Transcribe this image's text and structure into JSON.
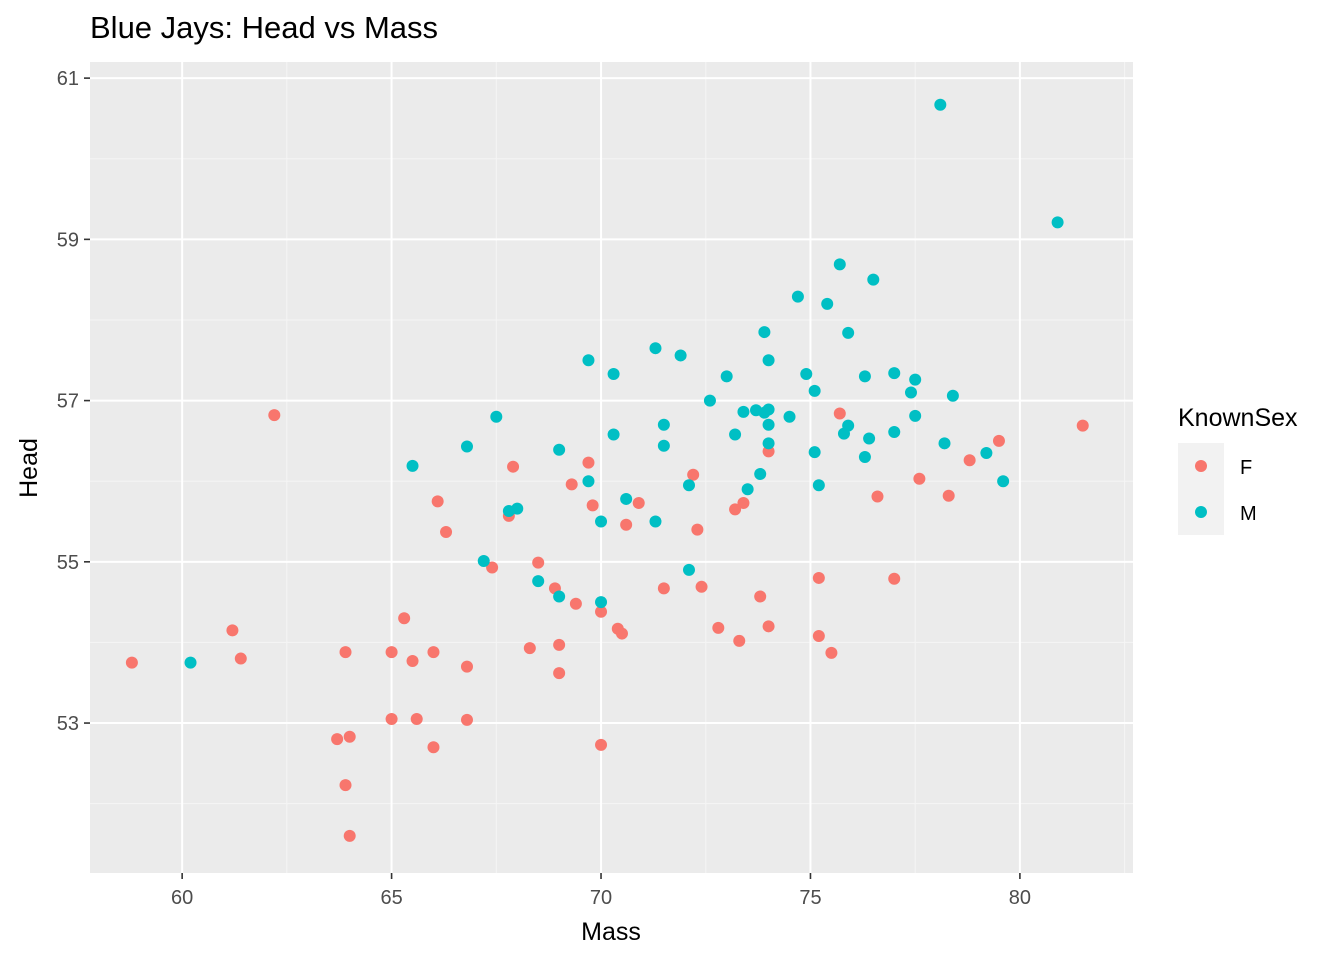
{
  "chart_data": {
    "type": "scatter",
    "title": "Blue Jays: Head vs Mass",
    "xlabel": "Mass",
    "ylabel": "Head",
    "xlim": [
      57.8,
      82.7
    ],
    "ylim": [
      51.14,
      61.2
    ],
    "xticks": [
      60,
      65,
      70,
      75,
      80
    ],
    "yticks": [
      53,
      55,
      57,
      59,
      61
    ],
    "grid": true,
    "legend": {
      "title": "KnownSex",
      "placement": "right"
    },
    "series": [
      {
        "name": "F",
        "color": "#F8766D",
        "points": [
          [
            58.8,
            53.75
          ],
          [
            61.2,
            54.15
          ],
          [
            61.4,
            53.8
          ],
          [
            62.2,
            56.82
          ],
          [
            63.7,
            52.8
          ],
          [
            63.9,
            53.88
          ],
          [
            63.9,
            52.23
          ],
          [
            64.0,
            52.83
          ],
          [
            64.0,
            51.6
          ],
          [
            65.0,
            53.88
          ],
          [
            65.0,
            53.05
          ],
          [
            65.3,
            54.3
          ],
          [
            65.5,
            53.77
          ],
          [
            65.6,
            53.05
          ],
          [
            66.0,
            53.88
          ],
          [
            66.0,
            52.7
          ],
          [
            66.1,
            55.75
          ],
          [
            66.3,
            55.37
          ],
          [
            66.8,
            53.7
          ],
          [
            66.8,
            53.04
          ],
          [
            67.4,
            54.93
          ],
          [
            67.8,
            55.57
          ],
          [
            67.9,
            56.18
          ],
          [
            68.3,
            53.93
          ],
          [
            68.5,
            54.99
          ],
          [
            68.9,
            54.67
          ],
          [
            69.0,
            53.97
          ],
          [
            69.0,
            53.62
          ],
          [
            69.3,
            55.96
          ],
          [
            69.4,
            54.48
          ],
          [
            69.7,
            56.23
          ],
          [
            69.8,
            55.7
          ],
          [
            70.0,
            54.38
          ],
          [
            70.0,
            52.73
          ],
          [
            70.4,
            54.17
          ],
          [
            70.5,
            54.11
          ],
          [
            70.6,
            55.46
          ],
          [
            70.9,
            55.73
          ],
          [
            71.5,
            54.67
          ],
          [
            72.2,
            56.08
          ],
          [
            72.3,
            55.4
          ],
          [
            72.4,
            54.69
          ],
          [
            72.8,
            54.18
          ],
          [
            73.2,
            55.65
          ],
          [
            73.3,
            54.02
          ],
          [
            73.4,
            55.73
          ],
          [
            73.8,
            54.57
          ],
          [
            74.0,
            56.37
          ],
          [
            74.0,
            54.2
          ],
          [
            75.2,
            54.8
          ],
          [
            75.2,
            54.08
          ],
          [
            75.5,
            53.87
          ],
          [
            75.7,
            56.84
          ],
          [
            76.6,
            55.81
          ],
          [
            77.0,
            54.79
          ],
          [
            77.6,
            56.03
          ],
          [
            78.3,
            55.82
          ],
          [
            78.8,
            56.26
          ],
          [
            79.5,
            56.5
          ],
          [
            81.5,
            56.69
          ]
        ]
      },
      {
        "name": "M",
        "color": "#00BFC4",
        "points": [
          [
            60.2,
            53.75
          ],
          [
            65.5,
            56.19
          ],
          [
            66.8,
            56.43
          ],
          [
            67.2,
            55.01
          ],
          [
            67.5,
            56.8
          ],
          [
            67.8,
            55.63
          ],
          [
            68.0,
            55.66
          ],
          [
            68.5,
            54.76
          ],
          [
            69.0,
            56.39
          ],
          [
            69.0,
            54.57
          ],
          [
            69.7,
            57.5
          ],
          [
            69.7,
            56.0
          ],
          [
            70.0,
            55.5
          ],
          [
            70.0,
            54.5
          ],
          [
            70.3,
            57.33
          ],
          [
            70.3,
            56.58
          ],
          [
            70.6,
            55.78
          ],
          [
            71.3,
            57.65
          ],
          [
            71.3,
            55.5
          ],
          [
            71.5,
            56.7
          ],
          [
            71.5,
            56.44
          ],
          [
            71.9,
            57.56
          ],
          [
            72.1,
            55.95
          ],
          [
            72.1,
            54.9
          ],
          [
            72.6,
            57.0
          ],
          [
            73.0,
            57.3
          ],
          [
            73.2,
            56.58
          ],
          [
            73.4,
            56.86
          ],
          [
            73.5,
            55.9
          ],
          [
            73.7,
            56.88
          ],
          [
            73.8,
            56.09
          ],
          [
            73.9,
            57.85
          ],
          [
            73.9,
            56.85
          ],
          [
            74.0,
            57.5
          ],
          [
            74.0,
            56.89
          ],
          [
            74.0,
            56.7
          ],
          [
            74.0,
            56.47
          ],
          [
            74.5,
            56.8
          ],
          [
            74.7,
            58.29
          ],
          [
            74.9,
            57.33
          ],
          [
            75.1,
            57.12
          ],
          [
            75.1,
            56.36
          ],
          [
            75.2,
            55.95
          ],
          [
            75.4,
            58.2
          ],
          [
            75.7,
            58.69
          ],
          [
            75.8,
            56.59
          ],
          [
            75.9,
            57.84
          ],
          [
            75.9,
            56.69
          ],
          [
            76.3,
            57.3
          ],
          [
            76.3,
            56.3
          ],
          [
            76.4,
            56.53
          ],
          [
            76.5,
            58.5
          ],
          [
            77.0,
            57.34
          ],
          [
            77.0,
            56.61
          ],
          [
            77.4,
            57.1
          ],
          [
            77.5,
            57.26
          ],
          [
            77.5,
            56.81
          ],
          [
            78.1,
            60.67
          ],
          [
            78.2,
            56.47
          ],
          [
            78.4,
            57.06
          ],
          [
            79.2,
            56.35
          ],
          [
            79.6,
            56.0
          ],
          [
            80.9,
            59.21
          ]
        ]
      }
    ]
  }
}
